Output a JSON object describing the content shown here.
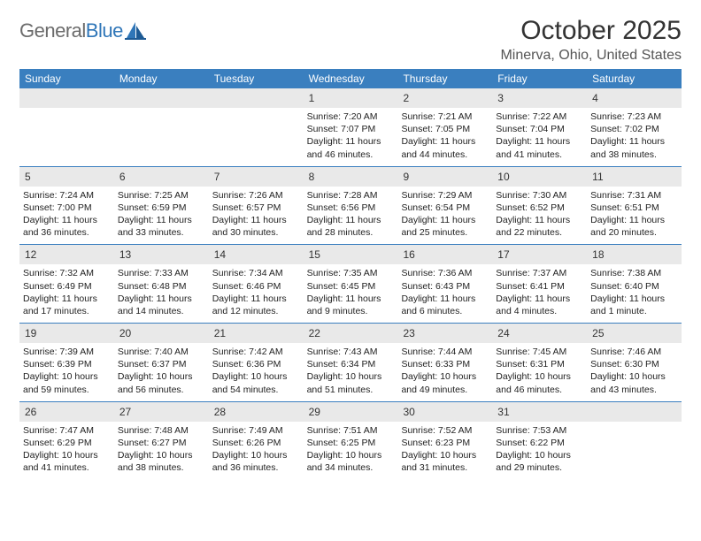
{
  "brand": {
    "word1": "General",
    "word2": "Blue"
  },
  "title": "October 2025",
  "location": "Minerva, Ohio, United States",
  "colors": {
    "header_bg": "#3a7fbf",
    "daynum_bg": "#e9e9e9",
    "text": "#222222",
    "brand_gray": "#6b6b6b",
    "brand_blue": "#2f76b8",
    "border": "#3a7fbf"
  },
  "daysOfWeek": [
    "Sunday",
    "Monday",
    "Tuesday",
    "Wednesday",
    "Thursday",
    "Friday",
    "Saturday"
  ],
  "weeks": [
    [
      {
        "n": "",
        "sunrise": "",
        "sunset": "",
        "daylight": ""
      },
      {
        "n": "",
        "sunrise": "",
        "sunset": "",
        "daylight": ""
      },
      {
        "n": "",
        "sunrise": "",
        "sunset": "",
        "daylight": ""
      },
      {
        "n": "1",
        "sunrise": "Sunrise: 7:20 AM",
        "sunset": "Sunset: 7:07 PM",
        "daylight": "Daylight: 11 hours and 46 minutes."
      },
      {
        "n": "2",
        "sunrise": "Sunrise: 7:21 AM",
        "sunset": "Sunset: 7:05 PM",
        "daylight": "Daylight: 11 hours and 44 minutes."
      },
      {
        "n": "3",
        "sunrise": "Sunrise: 7:22 AM",
        "sunset": "Sunset: 7:04 PM",
        "daylight": "Daylight: 11 hours and 41 minutes."
      },
      {
        "n": "4",
        "sunrise": "Sunrise: 7:23 AM",
        "sunset": "Sunset: 7:02 PM",
        "daylight": "Daylight: 11 hours and 38 minutes."
      }
    ],
    [
      {
        "n": "5",
        "sunrise": "Sunrise: 7:24 AM",
        "sunset": "Sunset: 7:00 PM",
        "daylight": "Daylight: 11 hours and 36 minutes."
      },
      {
        "n": "6",
        "sunrise": "Sunrise: 7:25 AM",
        "sunset": "Sunset: 6:59 PM",
        "daylight": "Daylight: 11 hours and 33 minutes."
      },
      {
        "n": "7",
        "sunrise": "Sunrise: 7:26 AM",
        "sunset": "Sunset: 6:57 PM",
        "daylight": "Daylight: 11 hours and 30 minutes."
      },
      {
        "n": "8",
        "sunrise": "Sunrise: 7:28 AM",
        "sunset": "Sunset: 6:56 PM",
        "daylight": "Daylight: 11 hours and 28 minutes."
      },
      {
        "n": "9",
        "sunrise": "Sunrise: 7:29 AM",
        "sunset": "Sunset: 6:54 PM",
        "daylight": "Daylight: 11 hours and 25 minutes."
      },
      {
        "n": "10",
        "sunrise": "Sunrise: 7:30 AM",
        "sunset": "Sunset: 6:52 PM",
        "daylight": "Daylight: 11 hours and 22 minutes."
      },
      {
        "n": "11",
        "sunrise": "Sunrise: 7:31 AM",
        "sunset": "Sunset: 6:51 PM",
        "daylight": "Daylight: 11 hours and 20 minutes."
      }
    ],
    [
      {
        "n": "12",
        "sunrise": "Sunrise: 7:32 AM",
        "sunset": "Sunset: 6:49 PM",
        "daylight": "Daylight: 11 hours and 17 minutes."
      },
      {
        "n": "13",
        "sunrise": "Sunrise: 7:33 AM",
        "sunset": "Sunset: 6:48 PM",
        "daylight": "Daylight: 11 hours and 14 minutes."
      },
      {
        "n": "14",
        "sunrise": "Sunrise: 7:34 AM",
        "sunset": "Sunset: 6:46 PM",
        "daylight": "Daylight: 11 hours and 12 minutes."
      },
      {
        "n": "15",
        "sunrise": "Sunrise: 7:35 AM",
        "sunset": "Sunset: 6:45 PM",
        "daylight": "Daylight: 11 hours and 9 minutes."
      },
      {
        "n": "16",
        "sunrise": "Sunrise: 7:36 AM",
        "sunset": "Sunset: 6:43 PM",
        "daylight": "Daylight: 11 hours and 6 minutes."
      },
      {
        "n": "17",
        "sunrise": "Sunrise: 7:37 AM",
        "sunset": "Sunset: 6:41 PM",
        "daylight": "Daylight: 11 hours and 4 minutes."
      },
      {
        "n": "18",
        "sunrise": "Sunrise: 7:38 AM",
        "sunset": "Sunset: 6:40 PM",
        "daylight": "Daylight: 11 hours and 1 minute."
      }
    ],
    [
      {
        "n": "19",
        "sunrise": "Sunrise: 7:39 AM",
        "sunset": "Sunset: 6:39 PM",
        "daylight": "Daylight: 10 hours and 59 minutes."
      },
      {
        "n": "20",
        "sunrise": "Sunrise: 7:40 AM",
        "sunset": "Sunset: 6:37 PM",
        "daylight": "Daylight: 10 hours and 56 minutes."
      },
      {
        "n": "21",
        "sunrise": "Sunrise: 7:42 AM",
        "sunset": "Sunset: 6:36 PM",
        "daylight": "Daylight: 10 hours and 54 minutes."
      },
      {
        "n": "22",
        "sunrise": "Sunrise: 7:43 AM",
        "sunset": "Sunset: 6:34 PM",
        "daylight": "Daylight: 10 hours and 51 minutes."
      },
      {
        "n": "23",
        "sunrise": "Sunrise: 7:44 AM",
        "sunset": "Sunset: 6:33 PM",
        "daylight": "Daylight: 10 hours and 49 minutes."
      },
      {
        "n": "24",
        "sunrise": "Sunrise: 7:45 AM",
        "sunset": "Sunset: 6:31 PM",
        "daylight": "Daylight: 10 hours and 46 minutes."
      },
      {
        "n": "25",
        "sunrise": "Sunrise: 7:46 AM",
        "sunset": "Sunset: 6:30 PM",
        "daylight": "Daylight: 10 hours and 43 minutes."
      }
    ],
    [
      {
        "n": "26",
        "sunrise": "Sunrise: 7:47 AM",
        "sunset": "Sunset: 6:29 PM",
        "daylight": "Daylight: 10 hours and 41 minutes."
      },
      {
        "n": "27",
        "sunrise": "Sunrise: 7:48 AM",
        "sunset": "Sunset: 6:27 PM",
        "daylight": "Daylight: 10 hours and 38 minutes."
      },
      {
        "n": "28",
        "sunrise": "Sunrise: 7:49 AM",
        "sunset": "Sunset: 6:26 PM",
        "daylight": "Daylight: 10 hours and 36 minutes."
      },
      {
        "n": "29",
        "sunrise": "Sunrise: 7:51 AM",
        "sunset": "Sunset: 6:25 PM",
        "daylight": "Daylight: 10 hours and 34 minutes."
      },
      {
        "n": "30",
        "sunrise": "Sunrise: 7:52 AM",
        "sunset": "Sunset: 6:23 PM",
        "daylight": "Daylight: 10 hours and 31 minutes."
      },
      {
        "n": "31",
        "sunrise": "Sunrise: 7:53 AM",
        "sunset": "Sunset: 6:22 PM",
        "daylight": "Daylight: 10 hours and 29 minutes."
      },
      {
        "n": "",
        "sunrise": "",
        "sunset": "",
        "daylight": ""
      }
    ]
  ]
}
